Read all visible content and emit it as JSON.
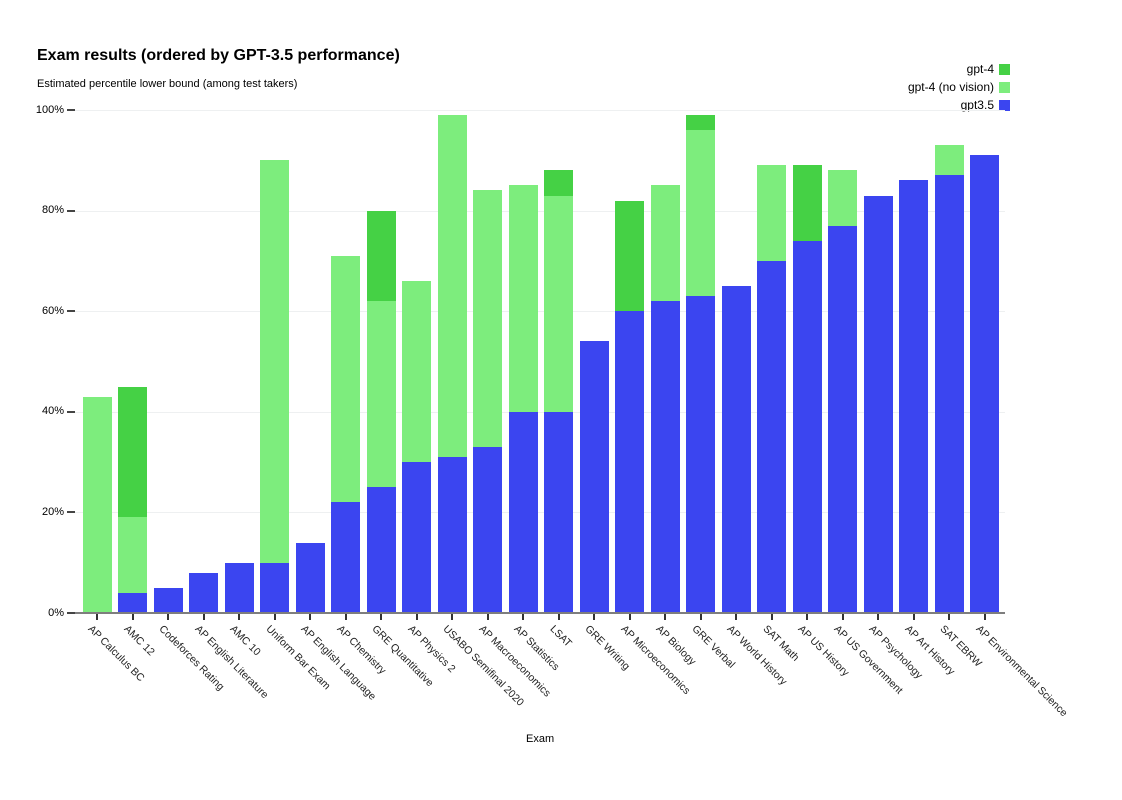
{
  "page": {
    "background": "#ffffff"
  },
  "chart_data": {
    "type": "bar",
    "title": "Exam results (ordered by GPT-3.5 performance)",
    "subtitle": "Estimated percentile lower bound (among test takers)",
    "xlabel": "Exam",
    "ylim": [
      0,
      100
    ],
    "grid": "horizontal-light",
    "legend_position": "top-right",
    "y_ticks": [
      {
        "value": 0,
        "label": "0%"
      },
      {
        "value": 20,
        "label": "20%"
      },
      {
        "value": 40,
        "label": "40%"
      },
      {
        "value": 60,
        "label": "60%"
      },
      {
        "value": 80,
        "label": "80%"
      },
      {
        "value": 100,
        "label": "100%"
      }
    ],
    "categories": [
      "AP Calculus BC",
      "AMC 12",
      "Codeforces Rating",
      "AP English Literature",
      "AMC 10",
      "Uniform Bar Exam",
      "AP English Language",
      "AP Chemistry",
      "GRE Quantitative",
      "AP Physics 2",
      "USABO Semifinal 2020",
      "AP Macroeconomics",
      "AP Statistics",
      "LSAT",
      "GRE Writing",
      "AP Microeconomics",
      "AP Biology",
      "GRE Verbal",
      "AP World History",
      "SAT Math",
      "AP US History",
      "AP US Government",
      "AP Psychology",
      "AP Art History",
      "SAT EBRW",
      "AP Environmental Science"
    ],
    "series": [
      {
        "name": "gpt-4",
        "color": "#45D145",
        "values": [
          43,
          45,
          5,
          8,
          6,
          90,
          14,
          71,
          80,
          66,
          99,
          84,
          85,
          88,
          54,
          82,
          85,
          99,
          65,
          89,
          89,
          88,
          83,
          86,
          93,
          91
        ]
      },
      {
        "name": "gpt-4 (no vision)",
        "color": "#7DED7D",
        "values": [
          43,
          19,
          5,
          8,
          10,
          90,
          14,
          71,
          62,
          66,
          99,
          84,
          85,
          83,
          54,
          60,
          85,
          96,
          65,
          89,
          74,
          88,
          83,
          86,
          93,
          91
        ]
      },
      {
        "name": "gpt3.5",
        "color": "#3B45F0",
        "values": [
          0,
          4,
          5,
          8,
          10,
          10,
          14,
          22,
          25,
          30,
          31,
          33,
          40,
          40,
          54,
          60,
          62,
          63,
          65,
          70,
          74,
          77,
          83,
          86,
          87,
          91
        ]
      }
    ]
  }
}
